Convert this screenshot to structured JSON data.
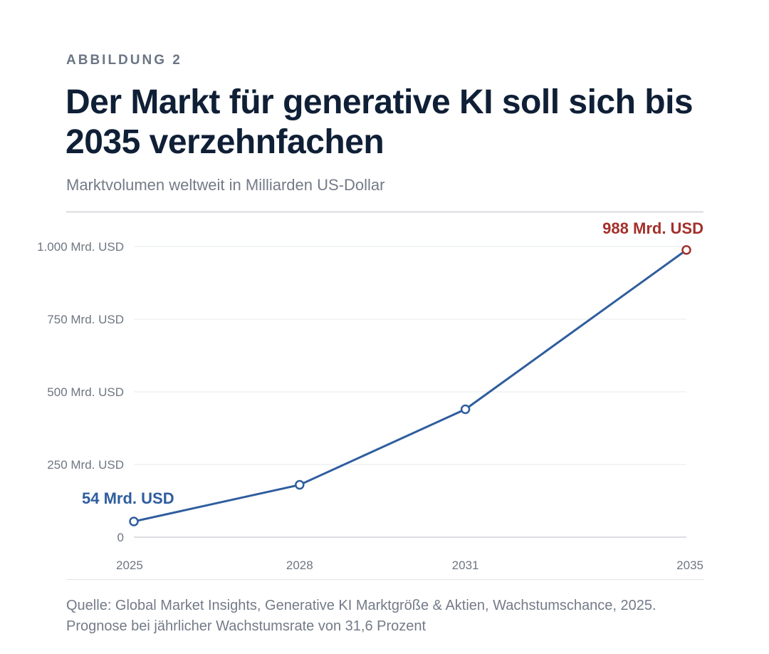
{
  "figure": {
    "kicker": "ABBILDUNG 2",
    "title": "Der Markt für generative KI soll sich bis 2035 verzehnfachen",
    "subtitle": "Marktvolumen weltweit in Milliarden US-Dollar",
    "source": "Quelle: Global Market Insights, Generative KI Marktgröße & Aktien, Wachstumschance, 2025. Prognose bei jährlicher Wachstumsrate von 31,6 Prozent"
  },
  "colors": {
    "line": "#2f5d9e",
    "end_callout": "#a3302b",
    "start_callout": "#2f5d9e",
    "grid": "#e6e8ec",
    "axis": "#b9bec6"
  },
  "chart_data": {
    "type": "line",
    "title": "Der Markt für generative KI soll sich bis 2035 verzehnfachen",
    "subtitle": "Marktvolumen weltweit in Milliarden US-Dollar",
    "x": [
      2025,
      2028,
      2031,
      2035
    ],
    "x_tick_labels": [
      "2025",
      "2028",
      "2031",
      "2035"
    ],
    "series": [
      {
        "values": [
          54,
          180,
          440,
          988
        ]
      }
    ],
    "ylim": [
      0,
      1000
    ],
    "y_ticks": [
      0,
      250,
      500,
      750,
      1000
    ],
    "y_tick_labels": [
      "0",
      "250 Mrd. USD",
      "500 Mrd. USD",
      "750 Mrd. USD",
      "1.000 Mrd. USD"
    ],
    "grid": true,
    "annotations": [
      {
        "label": "54 Mrd. USD",
        "x": 2025,
        "y": 54
      },
      {
        "label": "988 Mrd. USD",
        "x": 2035,
        "y": 988
      }
    ]
  }
}
